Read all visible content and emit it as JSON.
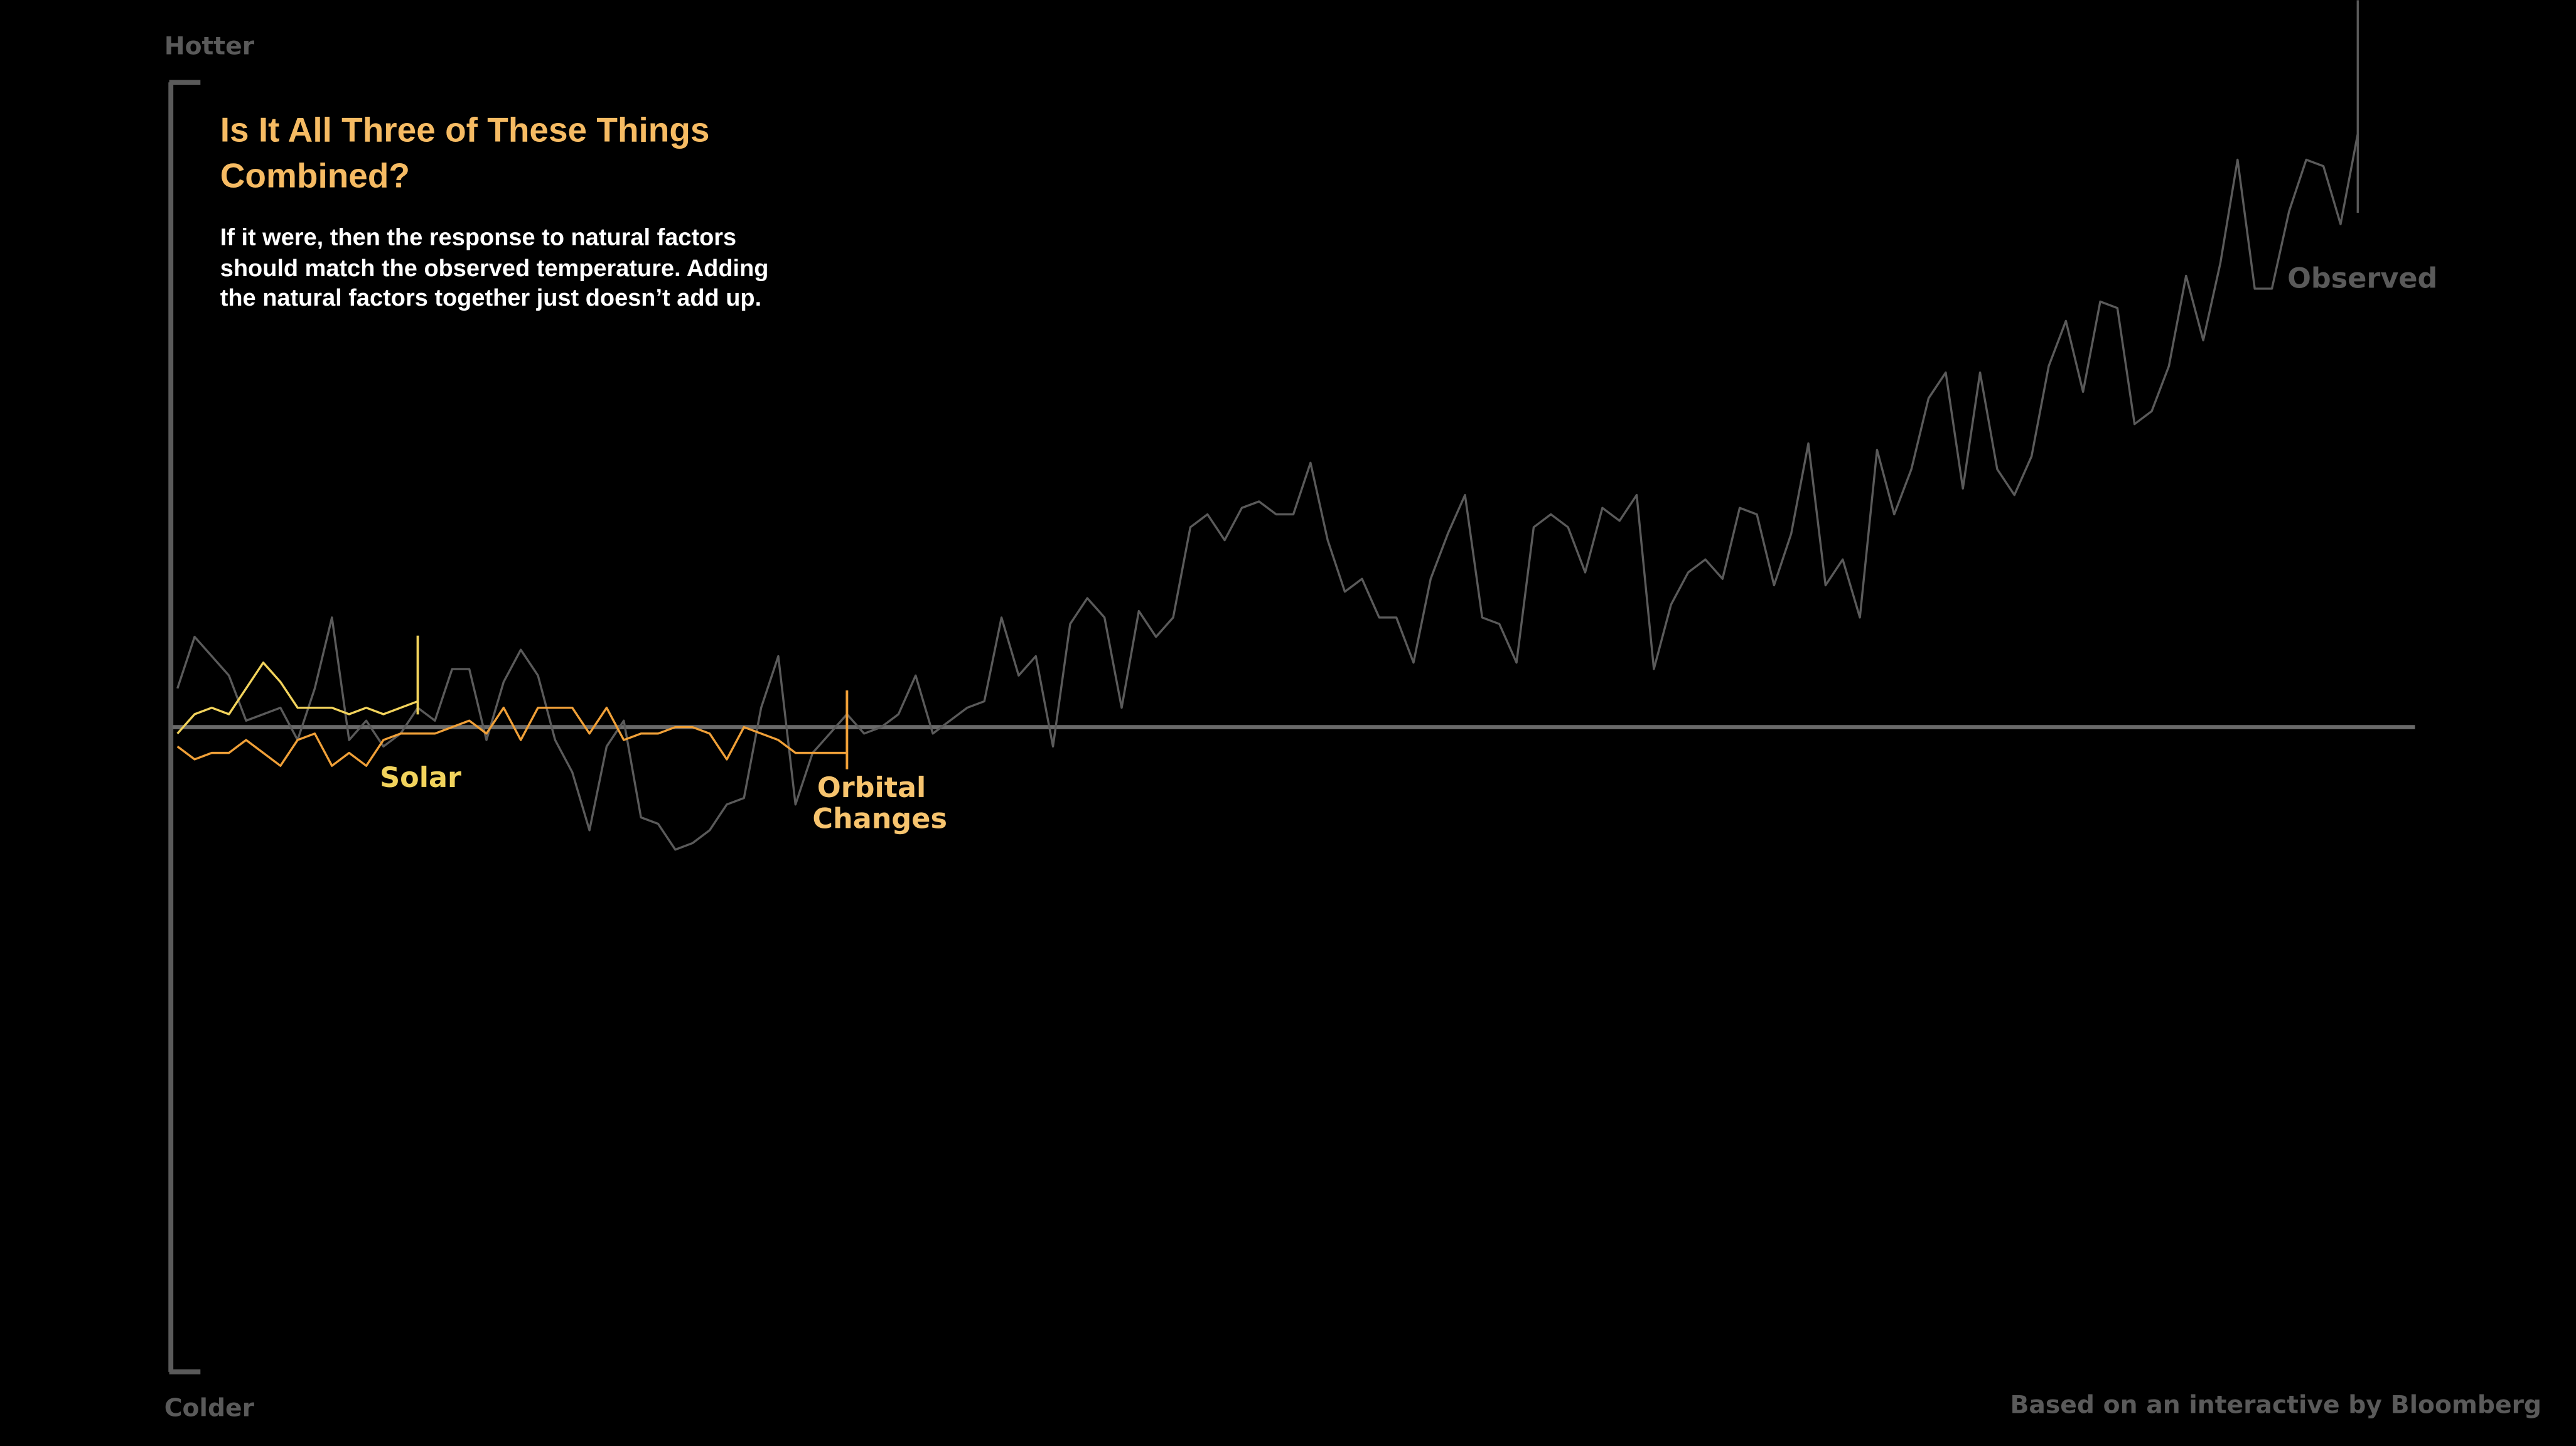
{
  "chart_data": {
    "type": "line",
    "title": "Is It All Three of These Things Combined?",
    "subtitle": "If it were, then the response to natural factors should match the observed temperature. Adding the natural factors together just doesn’t add up.",
    "top_label": "Hotter",
    "bottom_label": "Colder",
    "credit": "Based on an interactive by Bloomberg",
    "ylim": [
      -1,
      1
    ],
    "series": [
      {
        "name": "Observed",
        "color": "#5a5a5a",
        "values": [
          0.06,
          0.14,
          0.11,
          0.08,
          0.01,
          0.02,
          0.03,
          -0.02,
          0.06,
          0.17,
          -0.02,
          0.01,
          -0.03,
          -0.01,
          0.03,
          0.01,
          0.09,
          0.09,
          -0.02,
          0.07,
          0.12,
          0.08,
          -0.02,
          -0.07,
          -0.16,
          -0.03,
          0.01,
          -0.14,
          -0.15,
          -0.19,
          -0.18,
          -0.16,
          -0.12,
          -0.11,
          0.03,
          0.11,
          -0.12,
          -0.04,
          -0.01,
          0.02,
          -0.01,
          0,
          0.02,
          0.08,
          -0.01,
          0.01,
          0.03,
          0.04,
          0.17,
          0.08,
          0.11,
          -0.03,
          0.16,
          0.2,
          0.17,
          0.03,
          0.18,
          0.14,
          0.17,
          0.31,
          0.33,
          0.29,
          0.34,
          0.35,
          0.33,
          0.33,
          0.41,
          0.29,
          0.21,
          0.23,
          0.17,
          0.17,
          0.1,
          0.23,
          0.3,
          0.36,
          0.17,
          0.16,
          0.1,
          0.31,
          0.33,
          0.31,
          0.24,
          0.34,
          0.32,
          0.36,
          0.09,
          0.19,
          0.24,
          0.26,
          0.23,
          0.34,
          0.33,
          0.22,
          0.3,
          0.44,
          0.22,
          0.26,
          0.17,
          0.43,
          0.33,
          0.4,
          0.51,
          0.55,
          0.37,
          0.55,
          0.4,
          0.36,
          0.42,
          0.56,
          0.63,
          0.52,
          0.66,
          0.65,
          0.47,
          0.49,
          0.56,
          0.7,
          0.6,
          0.72,
          0.88,
          0.68,
          0.68,
          0.8,
          0.88,
          0.87,
          0.78,
          0.92
        ]
      },
      {
        "name": "Solar",
        "color": "#f2d35c",
        "values": [
          -0.01,
          0.02,
          0.03,
          0.02,
          0.06,
          0.1,
          0.07,
          0.03,
          0.03,
          0.03,
          0.02,
          0.03,
          0.02,
          0.03,
          0.04
        ]
      },
      {
        "name": "Orbital Changes",
        "color": "#f0a038",
        "values": [
          -0.03,
          -0.05,
          -0.04,
          -0.04,
          -0.02,
          -0.04,
          -0.06,
          -0.02,
          -0.01,
          -0.06,
          -0.04,
          -0.06,
          -0.02,
          -0.01,
          -0.01,
          -0.01,
          0,
          0.01,
          -0.01,
          0.03,
          -0.02,
          0.03,
          0.03,
          0.03,
          -0.01,
          0.03,
          -0.02,
          -0.01,
          -0.01,
          0,
          0,
          -0.01,
          -0.05,
          0,
          -0.01,
          -0.02,
          -0.04,
          -0.04,
          -0.04,
          -0.04
        ]
      }
    ]
  }
}
